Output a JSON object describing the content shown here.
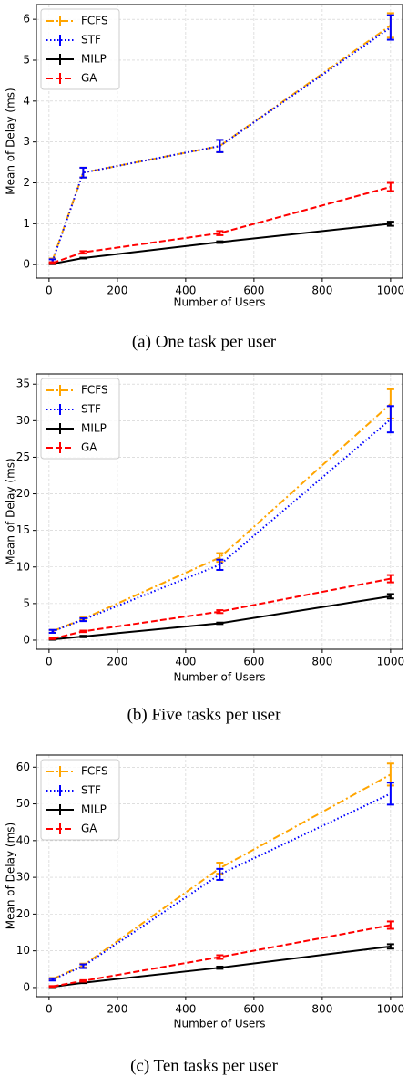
{
  "chart_data": [
    {
      "type": "line",
      "caption": "(a) One task per user",
      "xlabel": "Number of Users",
      "ylabel": "Mean of Delay (ms)",
      "x": [
        10,
        100,
        500,
        1000
      ],
      "xlim": [
        -37,
        1035
      ],
      "xticks": [
        0,
        200,
        400,
        600,
        800,
        1000
      ],
      "ylim": [
        -0.33,
        6.36
      ],
      "yticks": [
        0,
        1,
        2,
        3,
        4,
        5,
        6
      ],
      "grid": true,
      "legend": "upper left",
      "series": [
        {
          "name": "FCFS",
          "color": "#ffa500",
          "dash": "dashdot",
          "values": [
            0.1,
            2.25,
            2.9,
            5.85
          ],
          "errors": [
            0.05,
            0.12,
            0.15,
            0.3
          ]
        },
        {
          "name": "STF",
          "color": "#0000ff",
          "dash": "dotted",
          "values": [
            0.08,
            2.25,
            2.9,
            5.8
          ],
          "errors": [
            0.05,
            0.12,
            0.15,
            0.3
          ]
        },
        {
          "name": "MILP",
          "color": "#000000",
          "dash": "solid",
          "values": [
            0.02,
            0.16,
            0.55,
            1.0
          ],
          "errors": [
            0.01,
            0.01,
            0.02,
            0.05
          ]
        },
        {
          "name": "GA",
          "color": "#ff0000",
          "dash": "dashed",
          "values": [
            0.04,
            0.3,
            0.77,
            1.9
          ],
          "errors": [
            0.02,
            0.03,
            0.05,
            0.1
          ]
        }
      ]
    },
    {
      "type": "line",
      "caption": "(b) Five tasks per user",
      "xlabel": "Number of Users",
      "ylabel": "Mean of Delay (ms)",
      "x": [
        10,
        100,
        500,
        1000
      ],
      "xlim": [
        -37,
        1035
      ],
      "xticks": [
        0,
        200,
        400,
        600,
        800,
        1000
      ],
      "ylim": [
        -1.25,
        36.4
      ],
      "yticks": [
        0,
        5,
        10,
        15,
        20,
        25,
        30,
        35
      ],
      "grid": true,
      "legend": "upper left",
      "series": [
        {
          "name": "FCFS",
          "color": "#ffa500",
          "dash": "dashdot",
          "values": [
            1.2,
            2.9,
            11.3,
            32.3
          ],
          "errors": [
            0.2,
            0.2,
            0.6,
            2.0
          ]
        },
        {
          "name": "STF",
          "color": "#0000ff",
          "dash": "dotted",
          "values": [
            1.2,
            2.8,
            10.3,
            30.2
          ],
          "errors": [
            0.2,
            0.2,
            0.7,
            1.8
          ]
        },
        {
          "name": "MILP",
          "color": "#000000",
          "dash": "solid",
          "values": [
            0.1,
            0.5,
            2.3,
            6.0
          ],
          "errors": [
            0.05,
            0.1,
            0.1,
            0.3
          ]
        },
        {
          "name": "GA",
          "color": "#ff0000",
          "dash": "dashed",
          "values": [
            0.2,
            1.2,
            3.9,
            8.4
          ],
          "errors": [
            0.05,
            0.1,
            0.2,
            0.5
          ]
        }
      ]
    },
    {
      "type": "line",
      "caption": "(c) Ten tasks per user",
      "xlabel": "Number of Users",
      "ylabel": "Mean of Delay (ms)",
      "x": [
        10,
        100,
        500,
        1000
      ],
      "xlim": [
        -37,
        1035
      ],
      "xticks": [
        0,
        200,
        400,
        600,
        800,
        1000
      ],
      "ylim": [
        -2.5,
        63.3
      ],
      "yticks": [
        0,
        10,
        20,
        30,
        40,
        50,
        60
      ],
      "grid": true,
      "legend": "upper left",
      "series": [
        {
          "name": "FCFS",
          "color": "#ffa500",
          "dash": "dashdot",
          "values": [
            2.3,
            6,
            32.5,
            58
          ],
          "errors": [
            0.3,
            0.5,
            1.5,
            3
          ]
        },
        {
          "name": "STF",
          "color": "#0000ff",
          "dash": "dotted",
          "values": [
            2.2,
            5.8,
            30.8,
            52.8
          ],
          "errors": [
            0.3,
            0.5,
            1.5,
            3
          ]
        },
        {
          "name": "MILP",
          "color": "#000000",
          "dash": "solid",
          "values": [
            0.2,
            1.3,
            5.4,
            11.2
          ],
          "errors": [
            0.1,
            0.1,
            0.3,
            0.6
          ]
        },
        {
          "name": "GA",
          "color": "#ff0000",
          "dash": "dashed",
          "values": [
            0.3,
            1.8,
            8.3,
            17
          ],
          "errors": [
            0.1,
            0.2,
            0.5,
            1
          ]
        }
      ]
    }
  ]
}
